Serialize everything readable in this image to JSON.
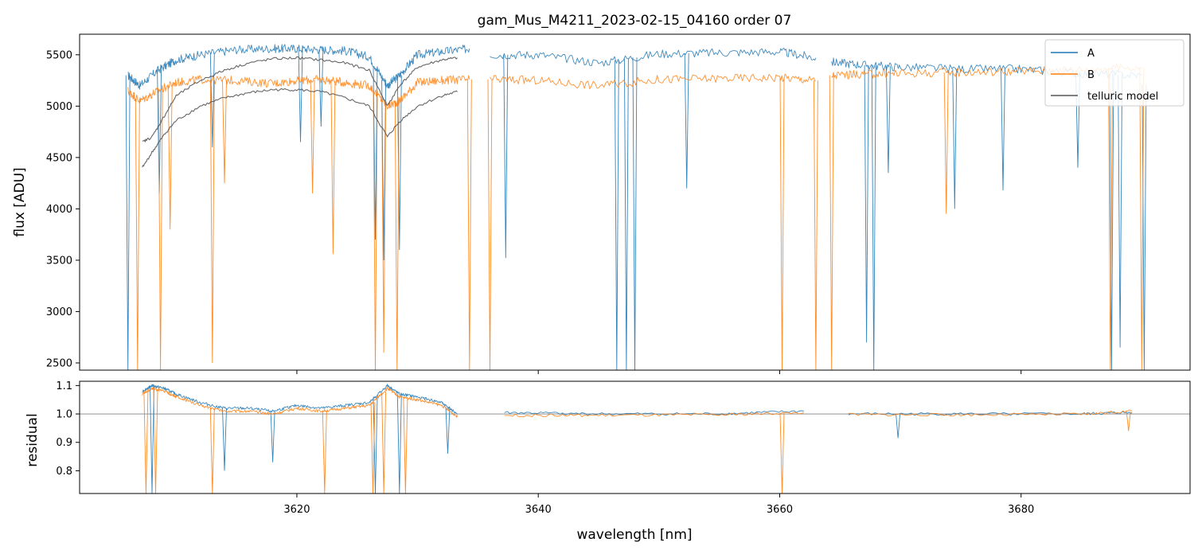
{
  "colors": {
    "A": "#1f77b4",
    "B": "#ff7f0e",
    "telluric": "#555555",
    "telluric_dark": "#222222",
    "reference_line": "#808080"
  },
  "chart_data": [
    {
      "type": "line",
      "title": "gam_Mus_M4211_2023-02-15_04160  order 07",
      "xlabel": "",
      "ylabel": "flux [ADU]",
      "xlim": [
        3602,
        3694
      ],
      "ylim": [
        2430,
        5700
      ],
      "yticks": [
        2500,
        3000,
        3500,
        4000,
        4500,
        5000,
        5500
      ],
      "ytick_labels": [
        "2500",
        "3000",
        "3500",
        "4000",
        "4500",
        "5000",
        "5500"
      ],
      "legend": {
        "position": "top-right",
        "entries": [
          "A",
          "B",
          "telluric model"
        ]
      },
      "series": [
        {
          "name": "A",
          "segments": [
            {
              "x": [
                3606.0,
                3607.0,
                3608.5,
                3610.0,
                3612.0,
                3615.0,
                3618.0,
                3620.0,
                3622.0,
                3624.0,
                3626.0,
                3627.5,
                3628.5,
                3630.0,
                3632.0,
                3634.3
              ],
              "y": [
                5300,
                5200,
                5350,
                5450,
                5500,
                5550,
                5560,
                5560,
                5550,
                5540,
                5480,
                5200,
                5300,
                5500,
                5530,
                5560
              ]
            },
            {
              "x": [
                3636.0,
                3640.0,
                3645.0,
                3650.0,
                3655.0,
                3660.0,
                3663.0
              ],
              "y": [
                5500,
                5500,
                5420,
                5510,
                5520,
                5530,
                5470
              ]
            },
            {
              "x": [
                3664.3,
                3667.0,
                3670.0,
                3675.0,
                3680.0,
                3685.0,
                3690.0
              ],
              "y": [
                5430,
                5400,
                5380,
                5360,
                5360,
                5320,
                5300
              ]
            }
          ],
          "absorption_lines": [
            {
              "x": 3606.0,
              "y": 2430
            },
            {
              "x": 3608.6,
              "y": 4150
            },
            {
              "x": 3613.0,
              "y": 4600
            },
            {
              "x": 3620.3,
              "y": 4650
            },
            {
              "x": 3622.0,
              "y": 4800
            },
            {
              "x": 3626.5,
              "y": 3700
            },
            {
              "x": 3627.2,
              "y": 3500
            },
            {
              "x": 3628.5,
              "y": 3600
            },
            {
              "x": 3637.3,
              "y": 3520
            },
            {
              "x": 3646.5,
              "y": 2430
            },
            {
              "x": 3647.3,
              "y": 2430
            },
            {
              "x": 3648.0,
              "y": 2430
            },
            {
              "x": 3652.3,
              "y": 4200
            },
            {
              "x": 3667.2,
              "y": 2700
            },
            {
              "x": 3667.8,
              "y": 2430
            },
            {
              "x": 3669.0,
              "y": 4350
            },
            {
              "x": 3674.5,
              "y": 4000
            },
            {
              "x": 3678.5,
              "y": 4180
            },
            {
              "x": 3684.7,
              "y": 4400
            },
            {
              "x": 3687.5,
              "y": 2430
            },
            {
              "x": 3688.2,
              "y": 2650
            },
            {
              "x": 3690.2,
              "y": 2430
            }
          ]
        },
        {
          "name": "B",
          "segments": [
            {
              "x": [
                3606.0,
                3607.0,
                3608.5,
                3610.0,
                3612.0,
                3615.0,
                3618.0,
                3620.0,
                3622.0,
                3624.0,
                3626.0,
                3627.5,
                3628.5,
                3630.0,
                3632.0,
                3634.3
              ],
              "y": [
                5150,
                5050,
                5150,
                5230,
                5260,
                5250,
                5220,
                5250,
                5260,
                5230,
                5200,
                5000,
                5050,
                5230,
                5250,
                5260
              ]
            },
            {
              "x": [
                3636.0,
                3640.0,
                3645.0,
                3650.0,
                3655.0,
                3660.0,
                3663.0
              ],
              "y": [
                5260,
                5250,
                5200,
                5260,
                5270,
                5280,
                5250
              ]
            },
            {
              "x": [
                3664.3,
                3667.0,
                3670.0,
                3675.0,
                3680.0,
                3685.0,
                3690.0
              ],
              "y": [
                5300,
                5310,
                5320,
                5330,
                5340,
                5360,
                5380
              ]
            }
          ],
          "absorption_lines": [
            {
              "x": 3606.8,
              "y": 2430
            },
            {
              "x": 3608.7,
              "y": 2430
            },
            {
              "x": 3609.5,
              "y": 3800
            },
            {
              "x": 3613.0,
              "y": 2500
            },
            {
              "x": 3614.0,
              "y": 4250
            },
            {
              "x": 3621.3,
              "y": 4150
            },
            {
              "x": 3623.0,
              "y": 3560
            },
            {
              "x": 3626.5,
              "y": 2430
            },
            {
              "x": 3627.2,
              "y": 2600
            },
            {
              "x": 3628.3,
              "y": 2430
            },
            {
              "x": 3634.3,
              "y": 2430
            },
            {
              "x": 3636.0,
              "y": 2430
            },
            {
              "x": 3660.2,
              "y": 2430
            },
            {
              "x": 3663.0,
              "y": 2430
            },
            {
              "x": 3664.3,
              "y": 2430
            },
            {
              "x": 3673.8,
              "y": 3950
            },
            {
              "x": 3687.4,
              "y": 2430
            },
            {
              "x": 3690.0,
              "y": 2430
            }
          ]
        },
        {
          "name": "telluric model",
          "segments": [
            {
              "x": [
                3607.2,
                3608.0,
                3609.0,
                3610.0,
                3612.0,
                3614.0,
                3616.0,
                3618.0,
                3620.0,
                3622.0,
                3624.0,
                3626.0,
                3627.5,
                3628.5,
                3630.0,
                3632.0,
                3633.3
              ],
              "y": [
                4650,
                4700,
                4900,
                5100,
                5250,
                5350,
                5420,
                5460,
                5470,
                5450,
                5420,
                5350,
                5000,
                5200,
                5380,
                5450,
                5470
              ]
            },
            {
              "x": [
                3607.2,
                3608.0,
                3609.0,
                3610.0,
                3612.0,
                3614.0,
                3616.0,
                3618.0,
                3620.0,
                3622.0,
                3624.0,
                3626.0,
                3627.5,
                3628.5,
                3630.0,
                3632.0,
                3633.3
              ],
              "y": [
                4400,
                4550,
                4720,
                4860,
                5000,
                5080,
                5130,
                5160,
                5160,
                5140,
                5080,
                5000,
                4700,
                4850,
                5000,
                5100,
                5140
              ]
            }
          ]
        }
      ]
    },
    {
      "type": "line",
      "title": "",
      "xlabel": "wavelength [nm]",
      "ylabel": "residual",
      "xlim": [
        3602,
        3694
      ],
      "ylim": [
        0.72,
        1.115
      ],
      "xticks": [
        3620,
        3640,
        3660,
        3680
      ],
      "xtick_labels": [
        "3620",
        "3640",
        "3660",
        "3680"
      ],
      "yticks": [
        0.8,
        0.9,
        1.0,
        1.1
      ],
      "ytick_labels": [
        "0.8",
        "0.9",
        "1.0",
        "1.1"
      ],
      "reference_line": 1.0,
      "series": [
        {
          "name": "A",
          "segments": [
            {
              "x": [
                3607.2,
                3608.0,
                3609.0,
                3610.0,
                3612.0,
                3614.0,
                3616.0,
                3618.0,
                3620.0,
                3622.0,
                3624.0,
                3626.0,
                3627.5,
                3628.5,
                3630.0,
                3632.0,
                3633.3
              ],
              "y": [
                1.08,
                1.1,
                1.09,
                1.07,
                1.04,
                1.02,
                1.02,
                1.01,
                1.03,
                1.02,
                1.03,
                1.04,
                1.1,
                1.07,
                1.06,
                1.04,
                1.0
              ]
            },
            {
              "x": [
                3637.2,
                3645.0,
                3655.0,
                3662.0
              ],
              "y": [
                1.005,
                1.0,
                1.0,
                1.01
              ]
            },
            {
              "x": [
                3665.7,
                3675.0,
                3685.0,
                3689.2
              ],
              "y": [
                1.0,
                1.0,
                1.0,
                1.005
              ]
            }
          ],
          "absorption_lines": [
            {
              "x": 3608.0,
              "y": 0.72
            },
            {
              "x": 3614.0,
              "y": 0.8
            },
            {
              "x": 3618.0,
              "y": 0.83
            },
            {
              "x": 3626.5,
              "y": 0.72
            },
            {
              "x": 3628.5,
              "y": 0.72
            },
            {
              "x": 3632.5,
              "y": 0.86
            },
            {
              "x": 3669.8,
              "y": 0.915
            }
          ]
        },
        {
          "name": "B",
          "segments": [
            {
              "x": [
                3607.2,
                3608.0,
                3609.0,
                3610.0,
                3612.0,
                3614.0,
                3616.0,
                3618.0,
                3620.0,
                3622.0,
                3624.0,
                3626.0,
                3627.5,
                3628.5,
                3630.0,
                3632.0,
                3633.3
              ],
              "y": [
                1.07,
                1.09,
                1.08,
                1.06,
                1.03,
                1.01,
                1.01,
                1.0,
                1.02,
                1.01,
                1.02,
                1.03,
                1.09,
                1.06,
                1.05,
                1.03,
                0.99
              ]
            },
            {
              "x": [
                3637.2,
                3645.0,
                3655.0,
                3662.0
              ],
              "y": [
                0.995,
                0.995,
                0.997,
                1.005
              ]
            },
            {
              "x": [
                3665.7,
                3675.0,
                3685.0,
                3689.2
              ],
              "y": [
                0.998,
                0.997,
                0.999,
                1.01
              ]
            }
          ],
          "absorption_lines": [
            {
              "x": 3607.5,
              "y": 0.72
            },
            {
              "x": 3608.3,
              "y": 0.72
            },
            {
              "x": 3613.0,
              "y": 0.72
            },
            {
              "x": 3622.3,
              "y": 0.72
            },
            {
              "x": 3626.3,
              "y": 0.72
            },
            {
              "x": 3627.2,
              "y": 0.72
            },
            {
              "x": 3629.0,
              "y": 0.72
            },
            {
              "x": 3660.2,
              "y": 0.72
            },
            {
              "x": 3688.9,
              "y": 0.94
            }
          ]
        }
      ]
    }
  ]
}
